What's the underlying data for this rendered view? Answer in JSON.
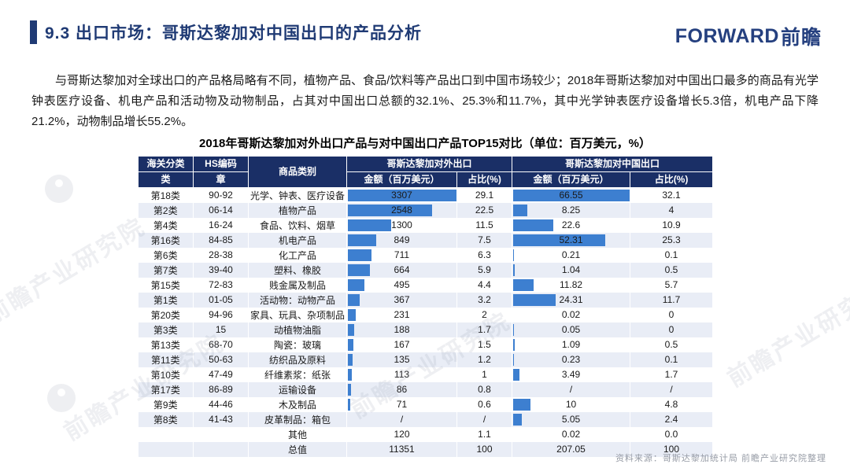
{
  "header": {
    "title": "9.3 出口市场：哥斯达黎加对中国出口的产品分析",
    "logo_en": "FORWARD",
    "logo_cn": "前瞻"
  },
  "intro": {
    "text": "与哥斯达黎加对全球出口的产品格局略有不同，植物产品、食品/饮料等产品出口到中国市场较少；2018年哥斯达黎加对中国出口最多的商品有光学钟表医疗设备、机电产品和活动物及动物制品，占其对中国出口总额的32.1%、25.3%和11.7%，其中光学钟表医疗设备增长5.3倍，机电产品下降21.2%，动物制品增长55.2%。"
  },
  "table": {
    "title": "2018年哥斯达黎加对外出口产品与对中国出口产品TOP15对比（单位：百万美元，%）",
    "header": {
      "customs_top": "海关分类",
      "customs_bottom": "类",
      "hs_top": "HS编码",
      "hs_bottom": "章",
      "product": "商品类别",
      "world_group": "哥斯达黎加对外出口",
      "china_group": "哥斯达黎加对中国出口",
      "amount_label": "金额（百万美元）",
      "share_label": "占比(%)"
    },
    "bar_max": {
      "world": 3307,
      "china": 66.55
    },
    "rows": [
      {
        "category": "第18类",
        "hs_code": "90-92",
        "product": "光学、钟表、医疗设备",
        "world_amount": "3307",
        "world_share": "29.1",
        "china_amount": "66.55",
        "china_share": "32.1",
        "world_bar": 3307,
        "china_bar": 66.55
      },
      {
        "category": "第2类",
        "hs_code": "06-14",
        "product": "植物产品",
        "world_amount": "2548",
        "world_share": "22.5",
        "china_amount": "8.25",
        "china_share": "4",
        "world_bar": 2548,
        "china_bar": 8.25
      },
      {
        "category": "第4类",
        "hs_code": "16-24",
        "product": "食品、饮料、烟草",
        "world_amount": "1300",
        "world_share": "11.5",
        "china_amount": "22.6",
        "china_share": "10.9",
        "world_bar": 1300,
        "china_bar": 22.6
      },
      {
        "category": "第16类",
        "hs_code": "84-85",
        "product": "机电产品",
        "world_amount": "849",
        "world_share": "7.5",
        "china_amount": "52.31",
        "china_share": "25.3",
        "world_bar": 849,
        "china_bar": 52.31
      },
      {
        "category": "第6类",
        "hs_code": "28-38",
        "product": "化工产品",
        "world_amount": "711",
        "world_share": "6.3",
        "china_amount": "0.21",
        "china_share": "0.1",
        "world_bar": 711,
        "china_bar": 0.21
      },
      {
        "category": "第7类",
        "hs_code": "39-40",
        "product": "塑料、橡胶",
        "world_amount": "664",
        "world_share": "5.9",
        "china_amount": "1.04",
        "china_share": "0.5",
        "world_bar": 664,
        "china_bar": 1.04
      },
      {
        "category": "第15类",
        "hs_code": "72-83",
        "product": "贱金属及制品",
        "world_amount": "495",
        "world_share": "4.4",
        "china_amount": "11.82",
        "china_share": "5.7",
        "world_bar": 495,
        "china_bar": 11.82
      },
      {
        "category": "第1类",
        "hs_code": "01-05",
        "product": "活动物：动物产品",
        "world_amount": "367",
        "world_share": "3.2",
        "china_amount": "24.31",
        "china_share": "11.7",
        "world_bar": 367,
        "china_bar": 24.31
      },
      {
        "category": "第20类",
        "hs_code": "94-96",
        "product": "家具、玩具、杂项制品",
        "world_amount": "231",
        "world_share": "2",
        "china_amount": "0.02",
        "china_share": "0",
        "world_bar": 231,
        "china_bar": 0.02
      },
      {
        "category": "第3类",
        "hs_code": "15",
        "product": "动植物油脂",
        "world_amount": "188",
        "world_share": "1.7",
        "china_amount": "0.05",
        "china_share": "0",
        "world_bar": 188,
        "china_bar": 0.05
      },
      {
        "category": "第13类",
        "hs_code": "68-70",
        "product": "陶瓷：玻璃",
        "world_amount": "167",
        "world_share": "1.5",
        "china_amount": "1.09",
        "china_share": "0.5",
        "world_bar": 167,
        "china_bar": 1.09
      },
      {
        "category": "第11类",
        "hs_code": "50-63",
        "product": "纺织品及原料",
        "world_amount": "135",
        "world_share": "1.2",
        "china_amount": "0.23",
        "china_share": "0.1",
        "world_bar": 135,
        "china_bar": 0.23
      },
      {
        "category": "第10类",
        "hs_code": "47-49",
        "product": "纤维素浆：纸张",
        "world_amount": "113",
        "world_share": "1",
        "china_amount": "3.49",
        "china_share": "1.7",
        "world_bar": 113,
        "china_bar": 3.49
      },
      {
        "category": "第17类",
        "hs_code": "86-89",
        "product": "运输设备",
        "world_amount": "86",
        "world_share": "0.8",
        "china_amount": "/",
        "china_share": "/",
        "world_bar": 86,
        "china_bar": null
      },
      {
        "category": "第9类",
        "hs_code": "44-46",
        "product": "木及制品",
        "world_amount": "71",
        "world_share": "0.6",
        "china_amount": "10",
        "china_share": "4.8",
        "world_bar": 71,
        "china_bar": 10
      },
      {
        "category": "第8类",
        "hs_code": "41-43",
        "product": "皮革制品：箱包",
        "world_amount": "/",
        "world_share": "/",
        "china_amount": "5.05",
        "china_share": "2.4",
        "world_bar": null,
        "china_bar": 5.05
      },
      {
        "category": "",
        "hs_code": "",
        "product": "其他",
        "world_amount": "120",
        "world_share": "1.1",
        "china_amount": "0.02",
        "china_share": "0.0",
        "world_bar": null,
        "china_bar": null
      },
      {
        "category": "",
        "hs_code": "",
        "product": "总值",
        "world_amount": "11351",
        "world_share": "100",
        "china_amount": "207.05",
        "china_share": "100",
        "world_bar": null,
        "china_bar": null
      }
    ]
  },
  "footer": {
    "source": "资料来源：哥斯达黎加统计局  前瞻产业研究院整理"
  },
  "watermark": {
    "text": "前瞻产业研究院"
  },
  "colors": {
    "header_navy": "#1a2f66",
    "title_navy": "#1f3a74",
    "bar_blue": "#3d7fd0",
    "stripe": "#e9edf6"
  }
}
